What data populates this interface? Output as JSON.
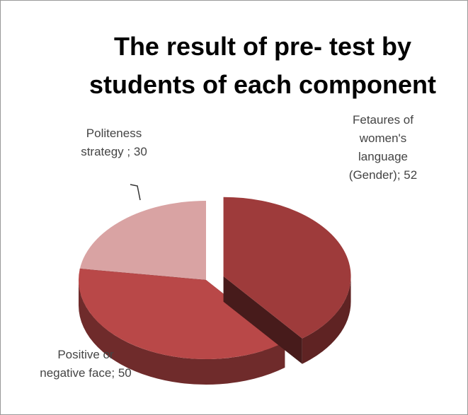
{
  "chart_data": {
    "type": "pie3d",
    "title": "The result of pre- test by students of each component",
    "categories": [
      "Fetaures of women's language (Gender);",
      "Positive or negative face;",
      "Politeness strategy ;"
    ],
    "values": [
      52,
      50,
      30
    ],
    "colors": [
      "#9e3b3b",
      "#b94848",
      "#d9a3a3"
    ],
    "exploded": [
      true,
      false,
      false
    ]
  }
}
